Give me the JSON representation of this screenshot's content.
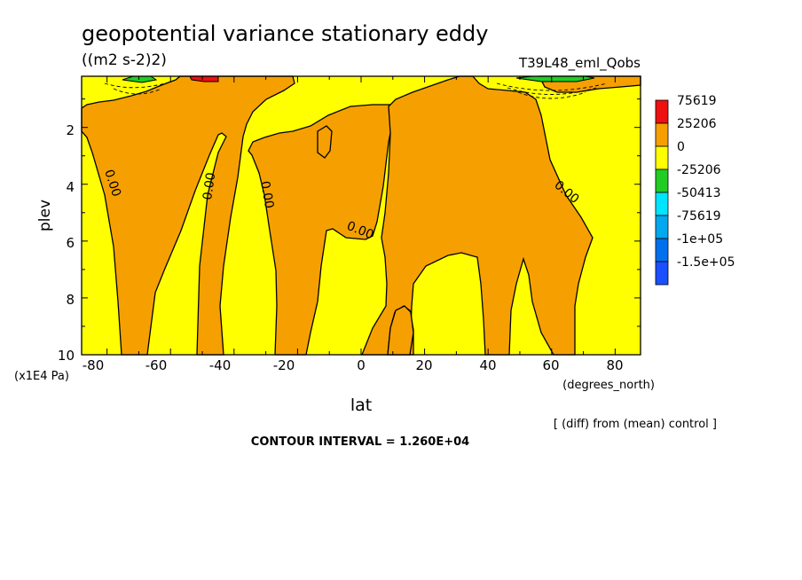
{
  "chart_data": {
    "type": "heatmap",
    "title": "geopotential variance stationary eddy",
    "units": "((m2 s-2)2)",
    "run_label": "T39L48_eml_Qobs",
    "xlabel": "lat",
    "xunits": "(degrees_north)",
    "ylabel": "plev",
    "yunits": "(x1E4 Pa)",
    "xlim": [
      -88,
      88
    ],
    "ylim": [
      10,
      0.2
    ],
    "xticks": [
      -80,
      -60,
      -40,
      -20,
      0,
      20,
      40,
      60,
      80
    ],
    "xtick_labels": [
      "-80",
      "-60",
      "-40",
      "-20",
      "0",
      "20",
      "40",
      "60",
      "80"
    ],
    "yticks": [
      2,
      4,
      6,
      8,
      10
    ],
    "ytick_labels": [
      "2",
      "4",
      "6",
      "8",
      "10"
    ],
    "contour_labels": [
      "0.00",
      "0.00",
      "0.00",
      "0.00",
      "0.00",
      "0.00"
    ],
    "footnote": "[ (diff) from (mean) control ]",
    "contour_interval_text": "CONTOUR INTERVAL = 1.260E+04",
    "legend": [
      {
        "label": "75619",
        "color": "#ee1111"
      },
      {
        "label": "25206",
        "color": "#f5a000"
      },
      {
        "label": "0",
        "color": "#ffff00"
      },
      {
        "label": "-25206",
        "color": "#22cc22"
      },
      {
        "label": "-50413",
        "color": "#00e5ff"
      },
      {
        "label": "-75619",
        "color": "#00a8f0"
      },
      {
        "label": "-1e+05",
        "color": "#0070ee"
      },
      {
        "label": "-1.5e+05",
        "color": "#1a50ff"
      }
    ],
    "regions": [
      {
        "level": "25206",
        "color": "#f5a000",
        "lat_ranges_at_plev_10": [
          [
            -78,
            -52
          ],
          [
            -40,
            -30
          ],
          [
            -18,
            9
          ],
          [
            14,
            47
          ],
          [
            52,
            72
          ]
        ]
      },
      {
        "level": "75619",
        "color": "#ee1111",
        "near_top_lat": [
          -54,
          -46
        ]
      },
      {
        "level": "-25206",
        "color": "#22cc22",
        "near_top_lat": [
          -78,
          -68
        ]
      },
      {
        "level": "-25206",
        "color": "#22cc22",
        "near_top_lat": [
          58,
          78
        ]
      }
    ]
  }
}
